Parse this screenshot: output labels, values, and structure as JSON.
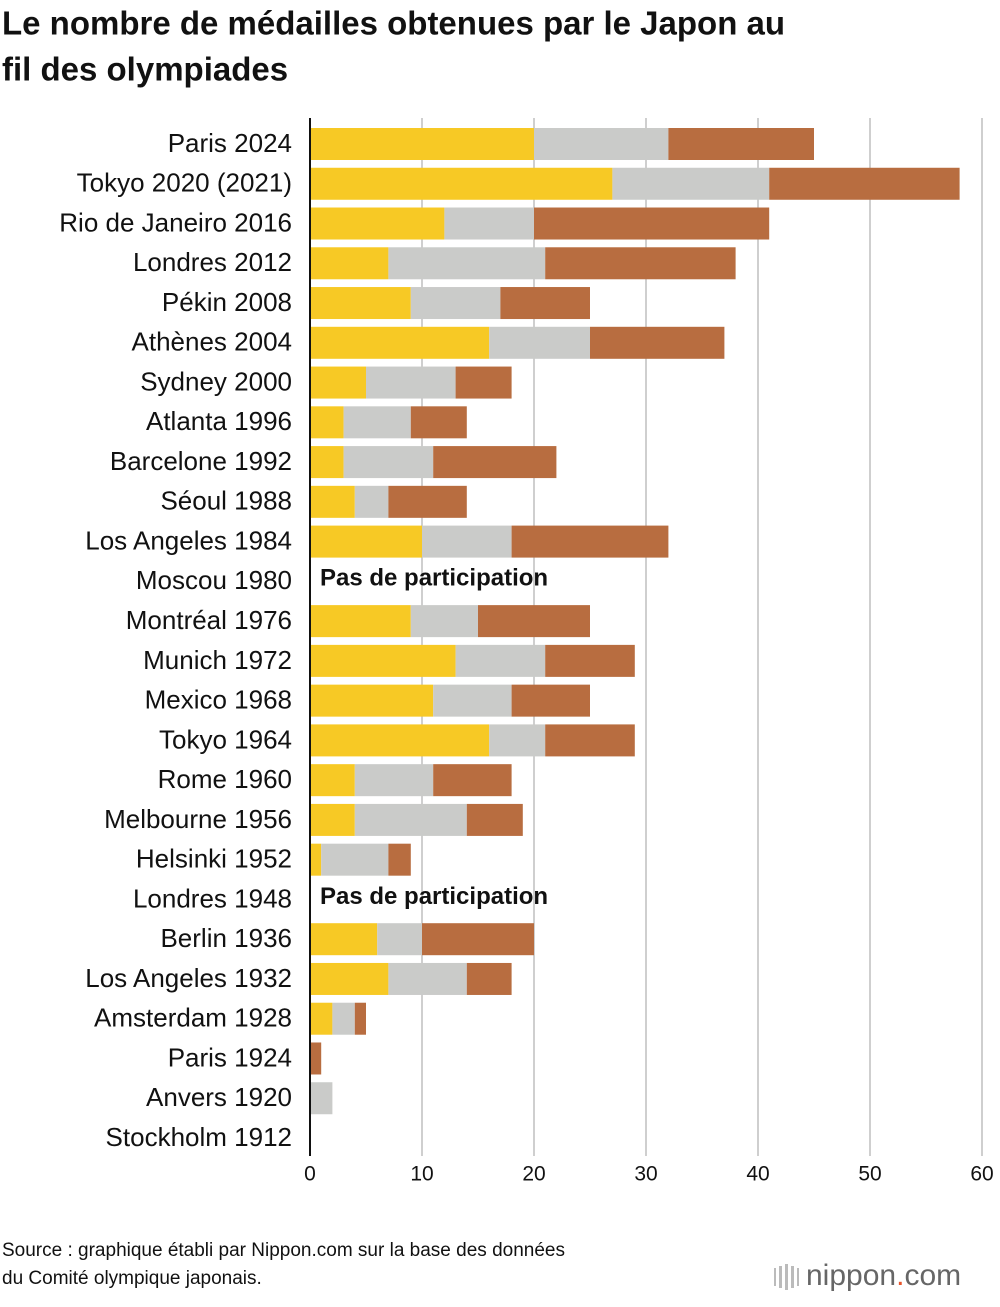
{
  "chart_data": {
    "type": "stacked_barh",
    "title": [
      "Le nombre de médailles obtenues par le Japon au",
      "fil des olympiades"
    ],
    "categories": [
      "Paris 2024",
      "Tokyo 2020 (2021)",
      "Rio de Janeiro 2016",
      "Londres 2012",
      "Pékin 2008",
      "Athènes 2004",
      "Sydney 2000",
      "Atlanta 1996",
      "Barcelone 1992",
      "Séoul 1988",
      "Los Angeles 1984",
      "Moscou 1980",
      "Montréal 1976",
      "Munich 1972",
      "Mexico 1968",
      "Tokyo 1964",
      "Rome 1960",
      "Melbourne 1956",
      "Helsinki 1952",
      "Londres 1948",
      "Berlin 1936",
      "Los Angeles 1932",
      "Amsterdam 1928",
      "Paris 1924",
      "Anvers 1920",
      "Stockholm 1912"
    ],
    "series": [
      {
        "color": "#f7c925",
        "values": [
          20,
          27,
          12,
          7,
          9,
          16,
          5,
          3,
          3,
          4,
          10,
          null,
          9,
          13,
          11,
          16,
          4,
          4,
          1,
          null,
          6,
          7,
          2,
          0,
          0,
          0
        ]
      },
      {
        "color": "#cacbc9",
        "values": [
          12,
          14,
          8,
          14,
          8,
          9,
          8,
          6,
          8,
          3,
          8,
          null,
          6,
          8,
          7,
          5,
          7,
          10,
          6,
          null,
          4,
          7,
          2,
          0,
          2,
          0
        ]
      },
      {
        "color": "#b86d40",
        "values": [
          13,
          17,
          21,
          17,
          8,
          12,
          5,
          5,
          11,
          7,
          14,
          null,
          10,
          8,
          7,
          8,
          7,
          5,
          2,
          null,
          10,
          4,
          1,
          1,
          0,
          0
        ]
      }
    ],
    "annotations": [
      "Pas de participation",
      "Pas de participation"
    ],
    "xlim": [
      0,
      60
    ],
    "xticks": [
      0,
      10,
      20,
      30,
      40,
      50,
      60
    ],
    "grid": true,
    "source": [
      "Source : graphique établi par Nippon.com sur la base des données",
      "du Comité olympique japonais."
    ],
    "logo": [
      "nippon",
      ".",
      "com"
    ]
  }
}
